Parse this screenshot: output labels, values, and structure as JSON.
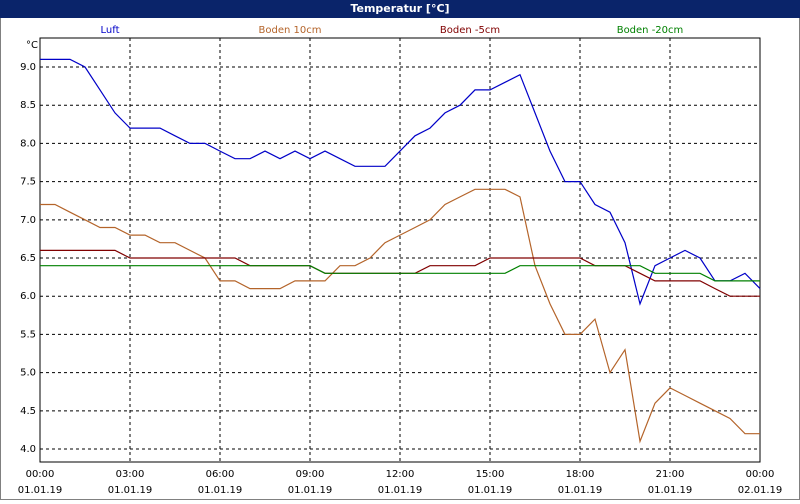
{
  "chart_data": {
    "type": "line",
    "title": "Temperatur [°C]",
    "y_unit": "°C",
    "grid": true,
    "legend": "top",
    "x": [
      0,
      0.5,
      1,
      1.5,
      2,
      2.5,
      3,
      3.5,
      4,
      4.5,
      5,
      5.5,
      6,
      6.5,
      7,
      7.5,
      8,
      8.5,
      9,
      9.5,
      10,
      10.5,
      11,
      11.5,
      12,
      12.5,
      13,
      13.5,
      14,
      14.5,
      15,
      15.5,
      16,
      16.5,
      17,
      17.5,
      18,
      18.5,
      19,
      19.5,
      20,
      20.5,
      21,
      21.5,
      22,
      22.5,
      23,
      23.5,
      24
    ],
    "xlim": [
      0,
      24
    ],
    "xticks": [
      {
        "value": 0,
        "label": "00:00",
        "date": "01.01.19"
      },
      {
        "value": 3,
        "label": "03:00",
        "date": "01.01.19"
      },
      {
        "value": 6,
        "label": "06:00",
        "date": "01.01.19"
      },
      {
        "value": 9,
        "label": "09:00",
        "date": "01.01.19"
      },
      {
        "value": 12,
        "label": "12:00",
        "date": "01.01.19"
      },
      {
        "value": 15,
        "label": "15:00",
        "date": "01.01.19"
      },
      {
        "value": 18,
        "label": "18:00",
        "date": "01.01.19"
      },
      {
        "value": 21,
        "label": "21:00",
        "date": "01.01.19"
      },
      {
        "value": 24,
        "label": "00:00",
        "date": "02.01.19"
      }
    ],
    "ylim": [
      3.83,
      9.38
    ],
    "yticks": [
      {
        "value": 4,
        "label": "4.0"
      },
      {
        "value": 4.5,
        "label": "4.5"
      },
      {
        "value": 5,
        "label": "5.0"
      },
      {
        "value": 5.5,
        "label": "5.5"
      },
      {
        "value": 6,
        "label": "6.0"
      },
      {
        "value": 6.5,
        "label": "6.5"
      },
      {
        "value": 7,
        "label": "7.0"
      },
      {
        "value": 7.5,
        "label": "7.5"
      },
      {
        "value": 8,
        "label": "8.0"
      },
      {
        "value": 8.5,
        "label": "8.5"
      },
      {
        "value": 9,
        "label": "9.0"
      }
    ],
    "series": [
      {
        "name": "Luft",
        "color": "#0000c8",
        "values": [
          9.1,
          9.1,
          9.1,
          9.0,
          8.7,
          8.4,
          8.2,
          8.2,
          8.2,
          8.1,
          8.0,
          8.0,
          7.9,
          7.8,
          7.8,
          7.9,
          7.8,
          7.9,
          7.8,
          7.9,
          7.8,
          7.7,
          7.7,
          7.7,
          7.9,
          8.1,
          8.2,
          8.4,
          8.5,
          8.7,
          8.7,
          8.8,
          8.9,
          8.4,
          7.9,
          7.5,
          7.5,
          7.2,
          7.1,
          6.7,
          5.9,
          6.4,
          6.5,
          6.6,
          6.5,
          6.2,
          6.2,
          6.3,
          6.1
        ]
      },
      {
        "name": "Boden 10cm",
        "color": "#b4642a",
        "values": [
          7.2,
          7.2,
          7.1,
          7.0,
          6.9,
          6.9,
          6.8,
          6.8,
          6.7,
          6.7,
          6.6,
          6.5,
          6.2,
          6.2,
          6.1,
          6.1,
          6.1,
          6.2,
          6.2,
          6.2,
          6.4,
          6.4,
          6.5,
          6.7,
          6.8,
          6.9,
          7.0,
          7.2,
          7.3,
          7.4,
          7.4,
          7.4,
          7.3,
          6.4,
          5.9,
          5.5,
          5.5,
          5.7,
          5.0,
          5.3,
          4.1,
          4.6,
          4.8,
          4.7,
          4.6,
          4.5,
          4.4,
          4.2,
          4.2
        ]
      },
      {
        "name": "Boden -5cm",
        "color": "#800000",
        "values": [
          6.6,
          6.6,
          6.6,
          6.6,
          6.6,
          6.6,
          6.5,
          6.5,
          6.5,
          6.5,
          6.5,
          6.5,
          6.5,
          6.5,
          6.4,
          6.4,
          6.4,
          6.4,
          6.4,
          6.3,
          6.3,
          6.3,
          6.3,
          6.3,
          6.3,
          6.3,
          6.4,
          6.4,
          6.4,
          6.4,
          6.5,
          6.5,
          6.5,
          6.5,
          6.5,
          6.5,
          6.5,
          6.4,
          6.4,
          6.4,
          6.3,
          6.2,
          6.2,
          6.2,
          6.2,
          6.1,
          6.0,
          6.0,
          6.0
        ]
      },
      {
        "name": "Boden -20cm",
        "color": "#008000",
        "values": [
          6.4,
          6.4,
          6.4,
          6.4,
          6.4,
          6.4,
          6.4,
          6.4,
          6.4,
          6.4,
          6.4,
          6.4,
          6.4,
          6.4,
          6.4,
          6.4,
          6.4,
          6.4,
          6.4,
          6.3,
          6.3,
          6.3,
          6.3,
          6.3,
          6.3,
          6.3,
          6.3,
          6.3,
          6.3,
          6.3,
          6.3,
          6.3,
          6.4,
          6.4,
          6.4,
          6.4,
          6.4,
          6.4,
          6.4,
          6.4,
          6.4,
          6.3,
          6.3,
          6.3,
          6.3,
          6.2,
          6.2,
          6.2,
          6.2
        ]
      }
    ]
  }
}
